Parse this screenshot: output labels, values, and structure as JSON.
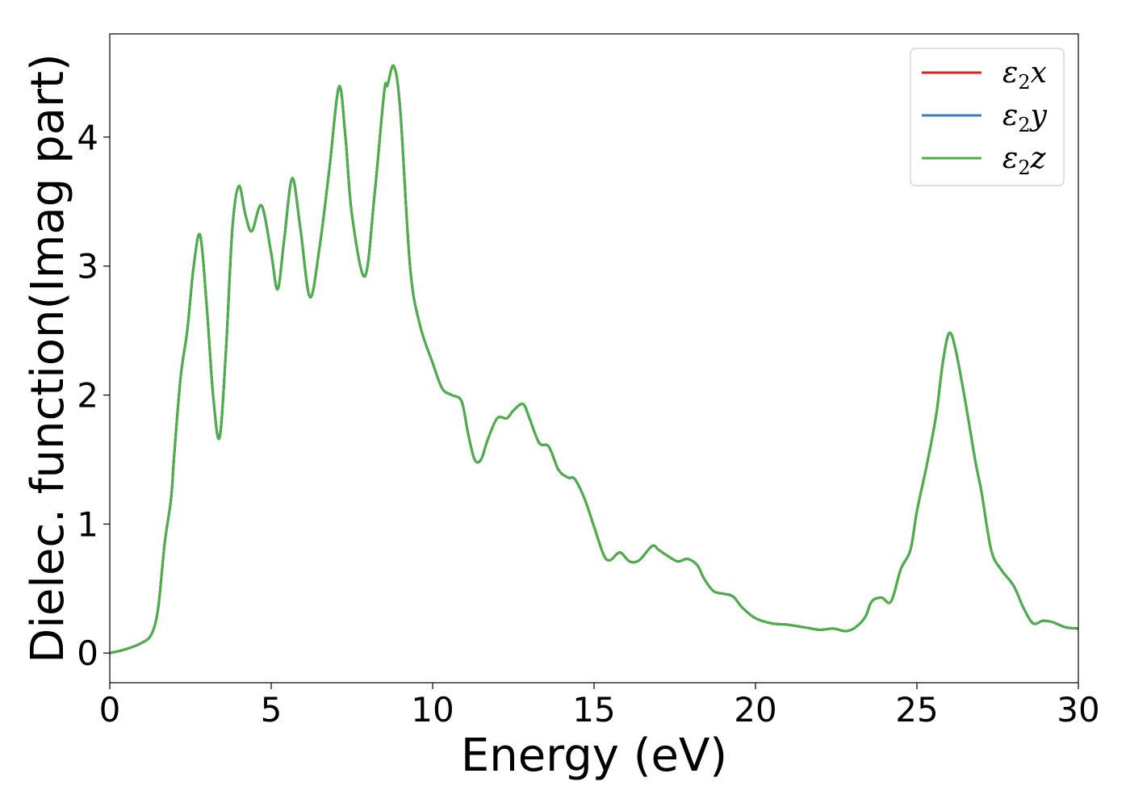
{
  "chart_data": {
    "type": "line",
    "xlabel": "Energy (eV)",
    "ylabel": "Dielec. function(Imag part)",
    "xlim": [
      0,
      30
    ],
    "ylim": [
      -0.23,
      4.8
    ],
    "xticks": [
      0,
      5,
      10,
      15,
      20,
      25,
      30
    ],
    "yticks": [
      0,
      1,
      2,
      3,
      4
    ],
    "grid": false,
    "legend": "top-right",
    "x": [
      0,
      0.5,
      1.0,
      1.3,
      1.5,
      1.7,
      1.9,
      2.0,
      2.2,
      2.4,
      2.6,
      2.8,
      3.0,
      3.2,
      3.4,
      3.6,
      3.8,
      4.0,
      4.2,
      4.4,
      4.7,
      5.0,
      5.2,
      5.4,
      5.65,
      5.9,
      6.2,
      6.5,
      6.8,
      7.1,
      7.3,
      7.5,
      7.9,
      8.2,
      8.5,
      8.6,
      8.8,
      9.0,
      9.3,
      9.6,
      10.0,
      10.3,
      10.6,
      10.9,
      11.1,
      11.3,
      11.5,
      11.7,
      12.0,
      12.3,
      12.5,
      12.8,
      13.0,
      13.3,
      13.6,
      13.9,
      14.2,
      14.4,
      14.7,
      15.0,
      15.3,
      15.5,
      15.8,
      16.1,
      16.4,
      16.8,
      17.0,
      17.3,
      17.6,
      17.9,
      18.2,
      18.4,
      18.7,
      19.0,
      19.3,
      19.6,
      20.0,
      20.5,
      21.0,
      21.5,
      22.0,
      22.4,
      22.8,
      23.1,
      23.4,
      23.6,
      23.9,
      24.2,
      24.5,
      24.8,
      25.0,
      25.3,
      25.6,
      25.8,
      26.0,
      26.2,
      26.5,
      26.8,
      27.0,
      27.3,
      27.6,
      28.0,
      28.3,
      28.6,
      28.9,
      29.2,
      29.6,
      30.0
    ],
    "series": [
      {
        "name": "ε₂x",
        "color": "#e41a1c",
        "values": [
          0.0,
          0.03,
          0.08,
          0.15,
          0.35,
          0.85,
          1.2,
          1.55,
          2.15,
          2.5,
          3.0,
          3.24,
          2.7,
          2.0,
          1.67,
          2.35,
          3.3,
          3.62,
          3.4,
          3.27,
          3.47,
          3.1,
          2.82,
          3.2,
          3.68,
          3.3,
          2.76,
          3.15,
          3.75,
          4.39,
          4.0,
          3.4,
          2.92,
          3.55,
          4.35,
          4.4,
          4.55,
          4.2,
          3.0,
          2.55,
          2.25,
          2.05,
          2.0,
          1.95,
          1.7,
          1.5,
          1.5,
          1.65,
          1.82,
          1.82,
          1.88,
          1.93,
          1.82,
          1.63,
          1.6,
          1.42,
          1.36,
          1.35,
          1.2,
          0.98,
          0.76,
          0.72,
          0.78,
          0.71,
          0.72,
          0.83,
          0.8,
          0.75,
          0.71,
          0.73,
          0.68,
          0.58,
          0.48,
          0.46,
          0.44,
          0.35,
          0.27,
          0.23,
          0.22,
          0.2,
          0.18,
          0.19,
          0.17,
          0.2,
          0.28,
          0.4,
          0.43,
          0.4,
          0.65,
          0.8,
          1.1,
          1.45,
          1.85,
          2.25,
          2.48,
          2.35,
          1.95,
          1.5,
          1.25,
          0.8,
          0.65,
          0.52,
          0.35,
          0.23,
          0.25,
          0.24,
          0.2,
          0.19
        ]
      },
      {
        "name": "ε₂y",
        "color": "#377eb8",
        "values": [
          0.0,
          0.03,
          0.08,
          0.15,
          0.35,
          0.85,
          1.2,
          1.55,
          2.15,
          2.5,
          3.0,
          3.24,
          2.7,
          2.0,
          1.67,
          2.35,
          3.3,
          3.62,
          3.4,
          3.27,
          3.47,
          3.1,
          2.82,
          3.2,
          3.68,
          3.3,
          2.76,
          3.15,
          3.75,
          4.39,
          4.0,
          3.4,
          2.92,
          3.55,
          4.35,
          4.4,
          4.55,
          4.2,
          3.0,
          2.55,
          2.25,
          2.05,
          2.0,
          1.95,
          1.7,
          1.5,
          1.5,
          1.65,
          1.82,
          1.82,
          1.88,
          1.93,
          1.82,
          1.63,
          1.6,
          1.42,
          1.36,
          1.35,
          1.2,
          0.98,
          0.76,
          0.72,
          0.78,
          0.71,
          0.72,
          0.83,
          0.8,
          0.75,
          0.71,
          0.73,
          0.68,
          0.58,
          0.48,
          0.46,
          0.44,
          0.35,
          0.27,
          0.23,
          0.22,
          0.2,
          0.18,
          0.19,
          0.17,
          0.2,
          0.28,
          0.4,
          0.43,
          0.4,
          0.65,
          0.8,
          1.1,
          1.45,
          1.85,
          2.25,
          2.48,
          2.35,
          1.95,
          1.5,
          1.25,
          0.8,
          0.65,
          0.52,
          0.35,
          0.23,
          0.25,
          0.24,
          0.2,
          0.19
        ]
      },
      {
        "name": "ε₂z",
        "color": "#4daf4a",
        "values": [
          0.0,
          0.03,
          0.08,
          0.15,
          0.35,
          0.85,
          1.2,
          1.55,
          2.15,
          2.5,
          3.0,
          3.24,
          2.7,
          2.0,
          1.67,
          2.35,
          3.3,
          3.62,
          3.4,
          3.27,
          3.47,
          3.1,
          2.82,
          3.2,
          3.68,
          3.3,
          2.76,
          3.15,
          3.75,
          4.39,
          4.0,
          3.4,
          2.92,
          3.55,
          4.35,
          4.4,
          4.55,
          4.2,
          3.0,
          2.55,
          2.25,
          2.05,
          2.0,
          1.95,
          1.7,
          1.5,
          1.5,
          1.65,
          1.82,
          1.82,
          1.88,
          1.93,
          1.82,
          1.63,
          1.6,
          1.42,
          1.36,
          1.35,
          1.2,
          0.98,
          0.76,
          0.72,
          0.78,
          0.71,
          0.72,
          0.83,
          0.8,
          0.75,
          0.71,
          0.73,
          0.68,
          0.58,
          0.48,
          0.46,
          0.44,
          0.35,
          0.27,
          0.23,
          0.22,
          0.2,
          0.18,
          0.19,
          0.17,
          0.2,
          0.28,
          0.4,
          0.43,
          0.4,
          0.65,
          0.8,
          1.1,
          1.45,
          1.85,
          2.25,
          2.48,
          2.35,
          1.95,
          1.5,
          1.25,
          0.8,
          0.65,
          0.52,
          0.35,
          0.23,
          0.25,
          0.24,
          0.2,
          0.19
        ]
      }
    ],
    "legend_entries": [
      {
        "symbol": "ε",
        "sub": "2",
        "suffix": "x",
        "color": "#e41a1c"
      },
      {
        "symbol": "ε",
        "sub": "2",
        "suffix": "y",
        "color": "#377eb8"
      },
      {
        "symbol": "ε",
        "sub": "2",
        "suffix": "z",
        "color": "#4daf4a"
      }
    ]
  }
}
